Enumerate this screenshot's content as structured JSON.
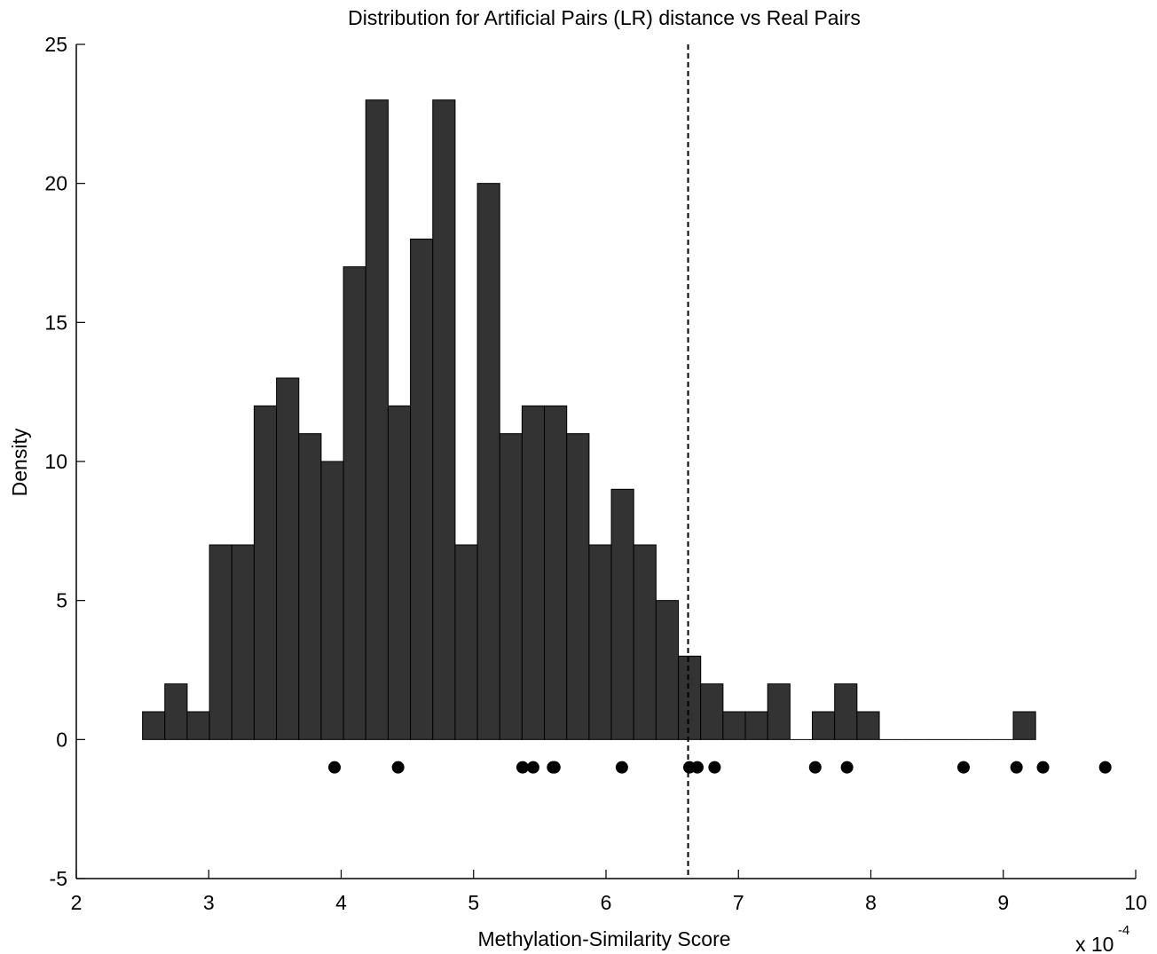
{
  "chart_data": {
    "type": "histogram",
    "title": "Distribution for Artificial Pairs (LR) distance vs Real Pairs",
    "xlabel": "Methylation-Similarity Score",
    "ylabel": "Density",
    "x_multiplier_label": {
      "base": "x 10",
      "exponent": "-4"
    },
    "xlim": [
      2,
      10
    ],
    "ylim": [
      -5,
      25
    ],
    "xticks": [
      "2",
      "3",
      "4",
      "5",
      "6",
      "7",
      "8",
      "9",
      "10"
    ],
    "yticks": [
      "-5",
      "0",
      "5",
      "10",
      "15",
      "20",
      "25"
    ],
    "grid": false,
    "bar_color": "#333333",
    "bar_edge_color": "#000000",
    "series": [
      {
        "type": "bar",
        "x_start": 2.5,
        "bin_width": 0.1686,
        "values": [
          1,
          2,
          1,
          7,
          7,
          12,
          13,
          11,
          10,
          17,
          23,
          12,
          18,
          23,
          7,
          20,
          11,
          12,
          12,
          11,
          7,
          9,
          7,
          5,
          3,
          2,
          1,
          1,
          2,
          0,
          1,
          2,
          1,
          0,
          0,
          0,
          0,
          0,
          0,
          1
        ]
      },
      {
        "type": "scatter",
        "y": -1,
        "x": [
          3.95,
          4.43,
          5.37,
          5.45,
          5.6,
          5.61,
          6.12,
          6.63,
          6.69,
          6.82,
          7.58,
          7.82,
          8.7,
          9.1,
          9.3,
          9.77
        ]
      }
    ],
    "threshold_line": {
      "x": 6.62,
      "style": "dashed"
    }
  }
}
